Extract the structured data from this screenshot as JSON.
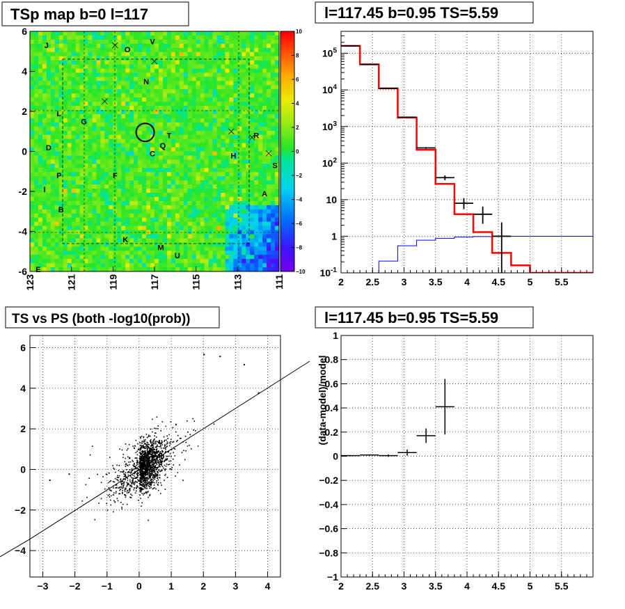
{
  "chart_data": [
    {
      "type": "heatmap",
      "title": "TSp map b=0 l=117",
      "x_ticks": [
        "123",
        "121",
        "119",
        "117",
        "115",
        "113",
        "111"
      ],
      "y_ticks": [
        "6",
        "4",
        "2",
        "0",
        "-2",
        "-4",
        "-6"
      ],
      "xlim": [
        123,
        111
      ],
      "ylim": [
        -6,
        6
      ],
      "z_ticks": [
        "10",
        "8",
        "6",
        "4",
        "2",
        "0",
        "−2",
        "−4",
        "−6",
        "−8",
        "−10"
      ],
      "zlim": [
        -10,
        10
      ],
      "source_labels": [
        {
          "text": "J",
          "l": 122.2,
          "b": 5.3
        },
        {
          "text": "O",
          "l": 118.3,
          "b": 5.1
        },
        {
          "text": "V",
          "l": 117.1,
          "b": 5.5
        },
        {
          "text": "N",
          "l": 117.4,
          "b": 3.5
        },
        {
          "text": "L",
          "l": 121.6,
          "b": 1.9
        },
        {
          "text": "G",
          "l": 120.4,
          "b": 1.5
        },
        {
          "text": "T",
          "l": 116.3,
          "b": 0.8
        },
        {
          "text": "Q",
          "l": 116.6,
          "b": 0.3
        },
        {
          "text": "C",
          "l": 117.1,
          "b": -0.1
        },
        {
          "text": "R",
          "l": 112.1,
          "b": 0.8
        },
        {
          "text": "D",
          "l": 122.1,
          "b": 0.2
        },
        {
          "text": "H",
          "l": 113.2,
          "b": -0.2
        },
        {
          "text": "S",
          "l": 111.2,
          "b": -0.7
        },
        {
          "text": "P",
          "l": 121.6,
          "b": -1.2
        },
        {
          "text": "F",
          "l": 118.9,
          "b": -1.2
        },
        {
          "text": "I",
          "l": 122.3,
          "b": -1.9
        },
        {
          "text": "A",
          "l": 111.7,
          "b": -2.1
        },
        {
          "text": "B",
          "l": 121.5,
          "b": -2.9
        },
        {
          "text": "K",
          "l": 118.4,
          "b": -4.4
        },
        {
          "text": "M",
          "l": 116.7,
          "b": -4.8
        },
        {
          "text": "U",
          "l": 115.9,
          "b": -5.2
        },
        {
          "text": "E",
          "l": 122.6,
          "b": -5.9
        }
      ],
      "cross_markers": [
        {
          "l": 118.9,
          "b": 5.3
        },
        {
          "text": "",
          "l": 117.0,
          "b": 4.5
        },
        {
          "l": 119.4,
          "b": 2.5
        },
        {
          "l": 113.3,
          "b": 1.0
        },
        {
          "l": 112.3,
          "b": 0.7
        },
        {
          "l": 111.5,
          "b": -0.1
        }
      ],
      "circle": {
        "l": 117.45,
        "b": 0.95,
        "r": 0.5
      }
    },
    {
      "type": "line",
      "title": "l=117.45 b=0.95 TS=5.59",
      "x_ticks": [
        "2",
        "2.5",
        "3",
        "3.5",
        "4",
        "4.5",
        "5",
        "5.5"
      ],
      "y_ticks": [
        "10^-1",
        "1",
        "10",
        "10^2",
        "10^3",
        "10^4",
        "10^5"
      ],
      "xlim": [
        2,
        6
      ],
      "ylim": [
        0.1,
        400000
      ],
      "y_log": true,
      "grid": true,
      "bin_edges": [
        2.0,
        2.3,
        2.6,
        2.9,
        3.2,
        3.5,
        3.8,
        4.1,
        4.4,
        4.7,
        5.0,
        6.0
      ],
      "series": [
        {
          "values": [
            160000,
            50000,
            11000,
            1750,
            230,
            27,
            4,
            1.3,
            0.35,
            0.16,
            0.1
          ],
          "color": "#ff0000"
        },
        {
          "values": [
            0.05,
            0.08,
            0.21,
            0.55,
            0.78,
            0.88,
            0.95,
            0.98,
            1.0,
            1.0,
            1.0
          ],
          "color": "#0000ff"
        }
      ],
      "data_points": [
        {
          "x": 2.15,
          "y": 160000,
          "xe": 0.15,
          "ylo": 159600,
          "yhi": 160400
        },
        {
          "x": 2.45,
          "y": 50000,
          "xe": 0.15,
          "ylo": 49800,
          "yhi": 50200
        },
        {
          "x": 2.75,
          "y": 11000,
          "xe": 0.15,
          "ylo": 10900,
          "yhi": 11100
        },
        {
          "x": 3.05,
          "y": 1800,
          "xe": 0.15,
          "ylo": 1760,
          "yhi": 1840
        },
        {
          "x": 3.35,
          "y": 260,
          "xe": 0.15,
          "ylo": 245,
          "yhi": 275
        },
        {
          "x": 3.65,
          "y": 40,
          "xe": 0.15,
          "ylo": 34,
          "yhi": 46
        },
        {
          "x": 3.95,
          "y": 8,
          "xe": 0.15,
          "ylo": 5.5,
          "yhi": 11
        },
        {
          "x": 4.25,
          "y": 4,
          "xe": 0.15,
          "ylo": 2.2,
          "yhi": 6.5
        },
        {
          "x": 4.55,
          "y": 1,
          "xe": 0.15,
          "ylo": 0.1,
          "yhi": 2.4
        }
      ]
    },
    {
      "type": "scatter",
      "title": "TS vs PS (both -log10(prob))",
      "x_ticks": [
        "−3",
        "−2",
        "−1",
        "0",
        "1",
        "2",
        "3",
        "4"
      ],
      "y_ticks": [
        "−4",
        "−2",
        "0",
        "2",
        "4",
        "6"
      ],
      "xlim": [
        -3.4,
        4.4
      ],
      "ylim": [
        -5.3,
        6.6
      ],
      "fit_line": {
        "slope": 0.98,
        "intercept": -0.1
      },
      "grid": true
    },
    {
      "type": "scatter",
      "title": "l=117.45 b=0.95 TS=5.59",
      "ylabel": "(data-model)/model",
      "x_ticks": [
        "2",
        "2.5",
        "3",
        "3.5",
        "4",
        "4.5",
        "5",
        "5.5"
      ],
      "y_ticks": [
        "−1",
        "−0.8",
        "−0.6",
        "−0.4",
        "−0.2",
        "0",
        "0.2",
        "0.4",
        "0.6",
        "0.8",
        "1"
      ],
      "xlim": [
        2,
        6
      ],
      "ylim": [
        -1,
        1
      ],
      "grid": true,
      "data_points": [
        {
          "x": 2.15,
          "y": 0.005,
          "xe": 0.15,
          "ye": 0.004
        },
        {
          "x": 2.45,
          "y": 0.01,
          "xe": 0.15,
          "ye": 0.006
        },
        {
          "x": 2.75,
          "y": 0.005,
          "xe": 0.15,
          "ye": 0.01
        },
        {
          "x": 3.05,
          "y": 0.03,
          "xe": 0.15,
          "ye": 0.025
        },
        {
          "x": 3.35,
          "y": 0.17,
          "xe": 0.15,
          "ye": 0.06
        },
        {
          "x": 3.65,
          "y": 0.41,
          "xe": 0.15,
          "ye": 0.23
        }
      ]
    }
  ]
}
